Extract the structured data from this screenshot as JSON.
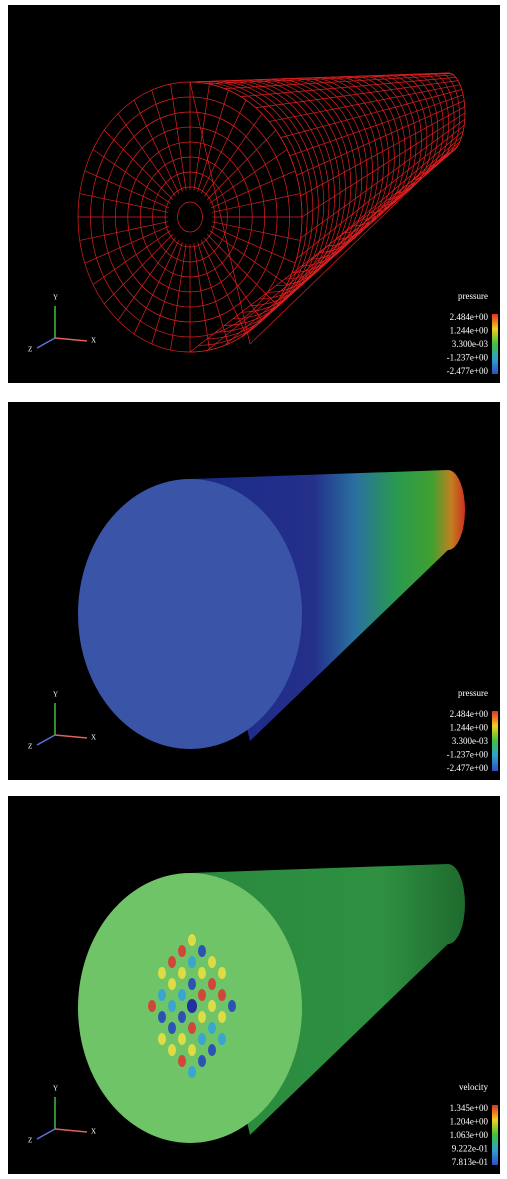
{
  "panels": [
    {
      "legend": {
        "title": "pressure",
        "labels": [
          "2.484e+00",
          "1.244e+00",
          "3.300e-03",
          "-1.237e+00",
          "-2.477e+00"
        ]
      },
      "axes": {
        "x": "X",
        "y": "Y",
        "z": "Z"
      }
    },
    {
      "legend": {
        "title": "pressure",
        "labels": [
          "2.484e+00",
          "1.244e+00",
          "3.300e-03",
          "-1.237e+00",
          "-2.477e+00"
        ]
      },
      "axes": {
        "x": "X",
        "y": "Y",
        "z": "Z"
      }
    },
    {
      "legend": {
        "title": "velocity",
        "labels": [
          "1.345e+00",
          "1.204e+00",
          "1.063e+00",
          "9.222e-01",
          "7.813e-01"
        ]
      },
      "axes": {
        "x": "X",
        "y": "Y",
        "z": "Z"
      }
    }
  ]
}
